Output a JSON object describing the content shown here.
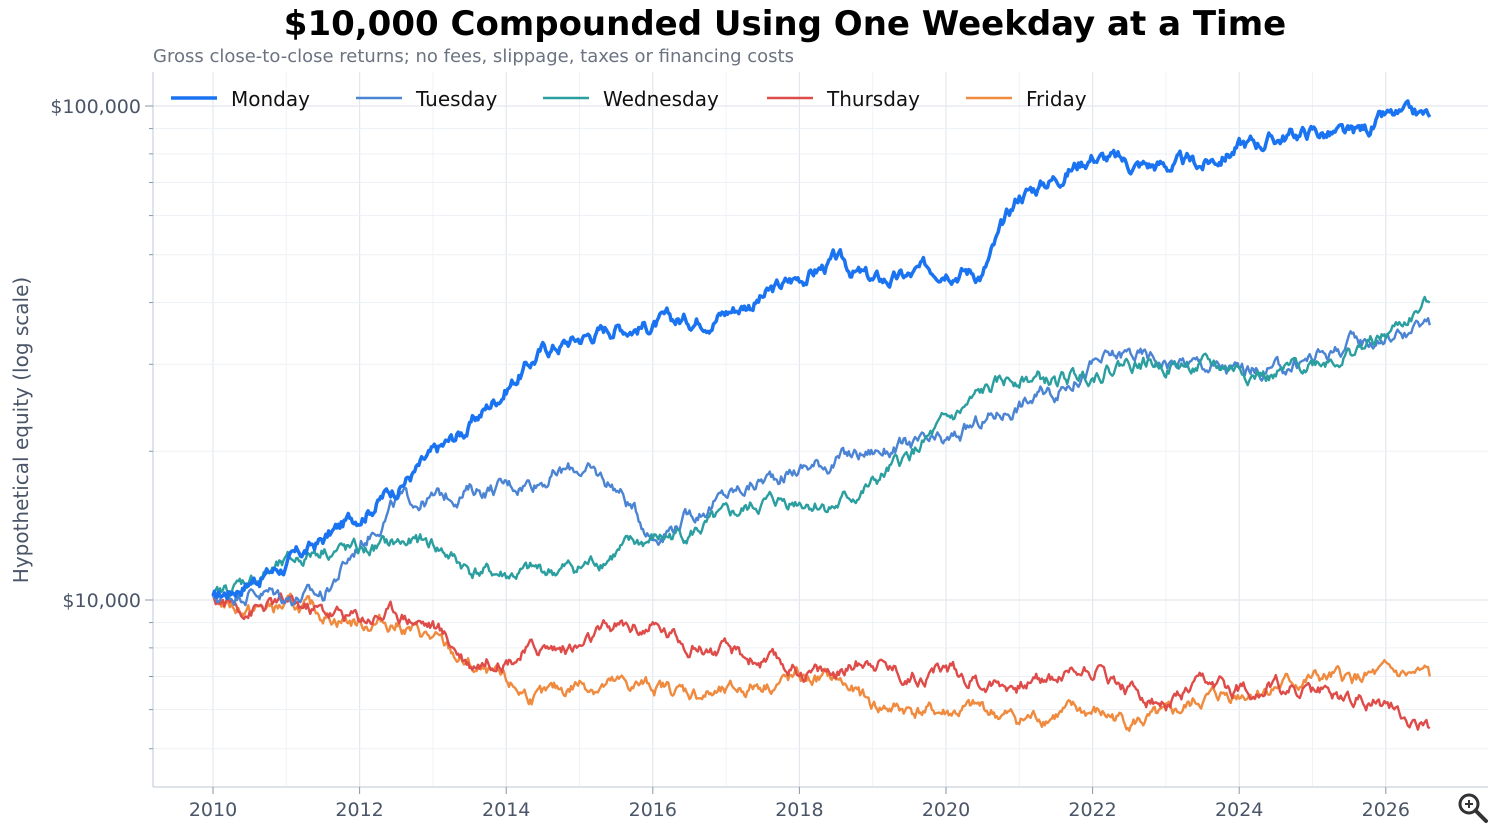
{
  "chart_data": {
    "type": "line",
    "title": "$10,000 Compounded Using One Weekday at a Time",
    "subtitle": "Gross close-to-close returns; no fees, slippage, taxes or financing costs",
    "xlabel": "",
    "ylabel": "Hypothetical equity (log scale)",
    "y_scale": "log",
    "xlim": [
      2009.2,
      2027.4
    ],
    "ylim": [
      5000,
      115000
    ],
    "x_ticks": [
      2010,
      2012,
      2014,
      2016,
      2018,
      2020,
      2022,
      2024,
      2026
    ],
    "x_tick_labels": [
      "2010",
      "2012",
      "2014",
      "2016",
      "2018",
      "2020",
      "2022",
      "2024",
      "2026"
    ],
    "y_ticks": [
      10000,
      100000
    ],
    "y_tick_labels": [
      "$10,000",
      "$100,000"
    ],
    "grid": true,
    "legend_position": "top-left",
    "x": [
      2010.0,
      2010.5,
      2011.0,
      2011.5,
      2012.0,
      2012.5,
      2013.0,
      2013.5,
      2014.0,
      2014.5,
      2015.0,
      2015.5,
      2016.0,
      2016.5,
      2017.0,
      2017.5,
      2018.0,
      2018.5,
      2019.0,
      2019.5,
      2020.0,
      2020.5,
      2021.0,
      2021.5,
      2022.0,
      2022.5,
      2023.0,
      2023.5,
      2024.0,
      2024.5,
      2025.0,
      2025.5,
      2026.0,
      2026.6
    ],
    "series": [
      {
        "name": "Monday",
        "color": "#1a73f0",
        "width": 3.5,
        "values": [
          10000,
          11000,
          11800,
          13200,
          15000,
          17000,
          19500,
          22500,
          27000,
          32000,
          34000,
          36000,
          36000,
          37000,
          38500,
          41000,
          45000,
          48500,
          44000,
          45000,
          48000,
          46000,
          66000,
          72000,
          80000,
          76000,
          76000,
          76000,
          83000,
          86000,
          89000,
          86000,
          94000,
          95000
        ]
      },
      {
        "name": "Tuesday",
        "color": "#4c84d4",
        "width": 2.4,
        "values": [
          10000,
          10500,
          10200,
          10200,
          13000,
          15800,
          16000,
          16700,
          17000,
          17700,
          18500,
          17000,
          13500,
          14800,
          16200,
          17500,
          18500,
          19200,
          20000,
          20500,
          20500,
          23000,
          25000,
          26500,
          30000,
          31500,
          30500,
          30000,
          29000,
          29000,
          31000,
          33000,
          34000,
          36000
        ]
      },
      {
        "name": "Wednesday",
        "color": "#2b9ea0",
        "width": 2.4,
        "values": [
          10000,
          11000,
          11700,
          12800,
          12500,
          13000,
          13000,
          11500,
          11200,
          11400,
          11600,
          12500,
          13200,
          13700,
          14500,
          15700,
          16000,
          15500,
          17000,
          19500,
          22500,
          26000,
          28500,
          27500,
          29000,
          30500,
          30000,
          29500,
          29500,
          28000,
          30500,
          31500,
          34000,
          40000
        ]
      },
      {
        "name": "Thursday",
        "color": "#de4b48",
        "width": 2.4,
        "values": [
          10000,
          9600,
          9800,
          9500,
          9200,
          9500,
          8900,
          7500,
          7700,
          8000,
          8000,
          8800,
          8800,
          8200,
          7800,
          7500,
          7200,
          7100,
          7700,
          7000,
          7300,
          6800,
          6800,
          7000,
          7400,
          6600,
          6100,
          6600,
          6600,
          6700,
          6500,
          6400,
          6200,
          5500
        ]
      },
      {
        "name": "Friday",
        "color": "#ef8a3e",
        "width": 2.4,
        "values": [
          10000,
          9500,
          9700,
          9400,
          9000,
          9000,
          8300,
          7300,
          6700,
          6300,
          6800,
          6700,
          6700,
          6500,
          6400,
          6800,
          6900,
          6900,
          6100,
          6000,
          5900,
          6000,
          5700,
          5900,
          5900,
          5700,
          5700,
          6300,
          6500,
          6700,
          6900,
          6900,
          7000,
          7000
        ]
      }
    ]
  },
  "toolbar": {
    "zoom_icon": "magnifier-zoom-icon"
  }
}
